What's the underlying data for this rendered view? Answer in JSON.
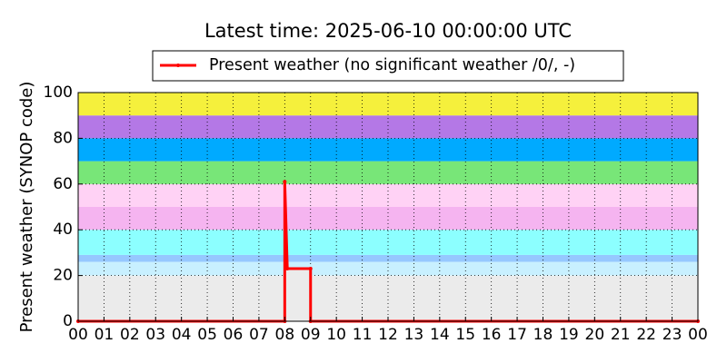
{
  "chart_data": {
    "type": "line",
    "title": "Latest time: 2025-06-10 00:00:00 UTC",
    "ylabel": "Present weather (SYNOP code)",
    "xlim": [
      0,
      24
    ],
    "ylim": [
      0,
      100
    ],
    "yticks": [
      0,
      20,
      40,
      60,
      80,
      100
    ],
    "xticks": [
      {
        "value": 0,
        "label": "00"
      },
      {
        "value": 1,
        "label": "01"
      },
      {
        "value": 2,
        "label": "02"
      },
      {
        "value": 3,
        "label": "03"
      },
      {
        "value": 4,
        "label": "04"
      },
      {
        "value": 5,
        "label": "05"
      },
      {
        "value": 6,
        "label": "06"
      },
      {
        "value": 7,
        "label": "07"
      },
      {
        "value": 8,
        "label": "08"
      },
      {
        "value": 9,
        "label": "09"
      },
      {
        "value": 10,
        "label": "10"
      },
      {
        "value": 11,
        "label": "11"
      },
      {
        "value": 12,
        "label": "12"
      },
      {
        "value": 13,
        "label": "13"
      },
      {
        "value": 14,
        "label": "14"
      },
      {
        "value": 15,
        "label": "15"
      },
      {
        "value": 16,
        "label": "16"
      },
      {
        "value": 17,
        "label": "17"
      },
      {
        "value": 18,
        "label": "18"
      },
      {
        "value": 19,
        "label": "19"
      },
      {
        "value": 20,
        "label": "20"
      },
      {
        "value": 21,
        "label": "21"
      },
      {
        "value": 22,
        "label": "22"
      },
      {
        "value": 23,
        "label": "23"
      },
      {
        "value": 24,
        "label": "00"
      }
    ],
    "grid": true,
    "bands": [
      {
        "from": 0,
        "to": 20,
        "color": "#ebebeb"
      },
      {
        "from": 20,
        "to": 26,
        "color": "#c8f0ff"
      },
      {
        "from": 26,
        "to": 29,
        "color": "#96c8ff"
      },
      {
        "from": 29,
        "to": 40,
        "color": "#8cffff"
      },
      {
        "from": 40,
        "to": 50,
        "color": "#f5b4f0"
      },
      {
        "from": 50,
        "to": 60,
        "color": "#ffd2f5"
      },
      {
        "from": 60,
        "to": 70,
        "color": "#78e678"
      },
      {
        "from": 70,
        "to": 80,
        "color": "#00aaff"
      },
      {
        "from": 80,
        "to": 90,
        "color": "#b478e6"
      },
      {
        "from": 90,
        "to": 100,
        "color": "#f5f03c"
      }
    ],
    "box": {
      "x": [
        8,
        9
      ],
      "top": 23
    },
    "series": [
      {
        "name": "Present weather (no significant weather /0/, -)",
        "color": "#ff0000",
        "x": [
          0,
          8,
          8,
          8.1,
          9,
          9,
          24
        ],
        "values": [
          0,
          0,
          61,
          23,
          23,
          0,
          0
        ]
      }
    ]
  }
}
